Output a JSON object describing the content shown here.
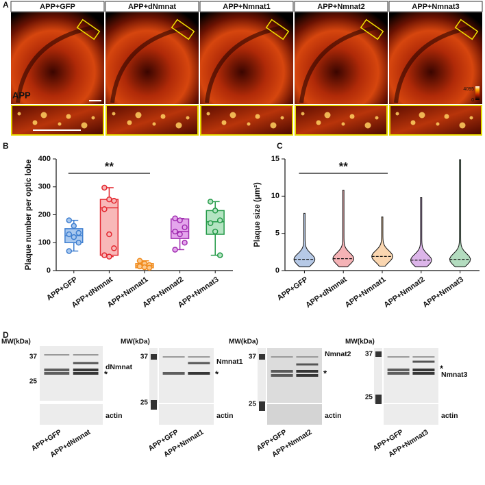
{
  "panel_labels": [
    "A",
    "B",
    "C",
    "D"
  ],
  "panel_a": {
    "titles": [
      "APP+GFP",
      "APP+dNmnat",
      "APP+Nmnat1",
      "APP+Nmnat2",
      "APP+Nmnat3"
    ],
    "stain": "APP",
    "colorbar": {
      "max": "4095",
      "min": "0"
    }
  },
  "chart_data": [
    {
      "type": "box",
      "ylabel": "Plaque number per optic lobe",
      "categories": [
        "APP+GFP",
        "APP+dNmnat",
        "APP+Nmnat1",
        "APP+Nmnat2",
        "APP+Nmnat3"
      ],
      "colors": [
        "#3f7fd0",
        "#e3262e",
        "#f08a1c",
        "#a02cb0",
        "#249a48"
      ],
      "fills": [
        "#a8c8ef",
        "#f8b8b8",
        "#fbc98e",
        "#e4a6ec",
        "#b4e4c2"
      ],
      "min": [
        70,
        50,
        8,
        75,
        55
      ],
      "q1": [
        100,
        55,
        10,
        115,
        130
      ],
      "median": [
        125,
        225,
        17,
        140,
        175
      ],
      "q3": [
        150,
        255,
        25,
        185,
        215
      ],
      "max": [
        180,
        297,
        35,
        187,
        247
      ],
      "points": [
        [
          180,
          160,
          135,
          130,
          120,
          100,
          70
        ],
        [
          297,
          255,
          250,
          220,
          130,
          80,
          55,
          50
        ],
        [
          35,
          25,
          20,
          15,
          12,
          10,
          15
        ],
        [
          187,
          180,
          155,
          140,
          130,
          100,
          75
        ],
        [
          247,
          215,
          180,
          170,
          140,
          55
        ]
      ],
      "ylim": [
        0,
        400
      ],
      "yticks": [
        0,
        100,
        200,
        300,
        400
      ],
      "annotation": "**"
    },
    {
      "type": "violin",
      "ylabel": "Plaque size (μm²)",
      "categories": [
        "APP+GFP",
        "APP+dNmnat",
        "APP+Nmnat1",
        "APP+Nmnat2",
        "APP+Nmnat3"
      ],
      "colors": [
        "#2f63b8",
        "#e3262e",
        "#f08a1c",
        "#9b2cc0",
        "#249a48"
      ],
      "min": [
        0.5,
        0.5,
        0.6,
        0.5,
        0.5
      ],
      "median": [
        1.5,
        1.6,
        1.9,
        1.4,
        1.5
      ],
      "max": [
        7.7,
        10.8,
        7.2,
        9.8,
        14.9
      ],
      "ylim": [
        0,
        15
      ],
      "yticks": [
        0,
        5,
        10,
        15
      ],
      "annotation": "**"
    }
  ],
  "panel_d": {
    "blots": [
      {
        "mw": "MW(kDa)",
        "markers": [
          "37",
          "25"
        ],
        "protein": "dNmnat",
        "star": "*",
        "loading": "actin",
        "lanes": [
          "APP+GFP",
          "APP+dNmnat"
        ]
      },
      {
        "mw": "MW(kDa)",
        "markers": [
          "37",
          "25"
        ],
        "protein": "Nmnat1",
        "star": "*",
        "loading": "actin",
        "lanes": [
          "APP+GFP",
          "APP+Nmnat1"
        ]
      },
      {
        "mw": "MW(kDa)",
        "markers": [
          "37",
          "25"
        ],
        "protein": "Nmnat2",
        "star": "*",
        "loading": "actin",
        "lanes": [
          "APP+GFP",
          "APP+Nmnat2"
        ]
      },
      {
        "mw": "MW(kDa)",
        "markers": [
          "37",
          "25"
        ],
        "protein": "Nmnat3",
        "star": "*",
        "loading": "actin",
        "lanes": [
          "APP+GFP",
          "APP+Nmnat3"
        ]
      }
    ]
  }
}
